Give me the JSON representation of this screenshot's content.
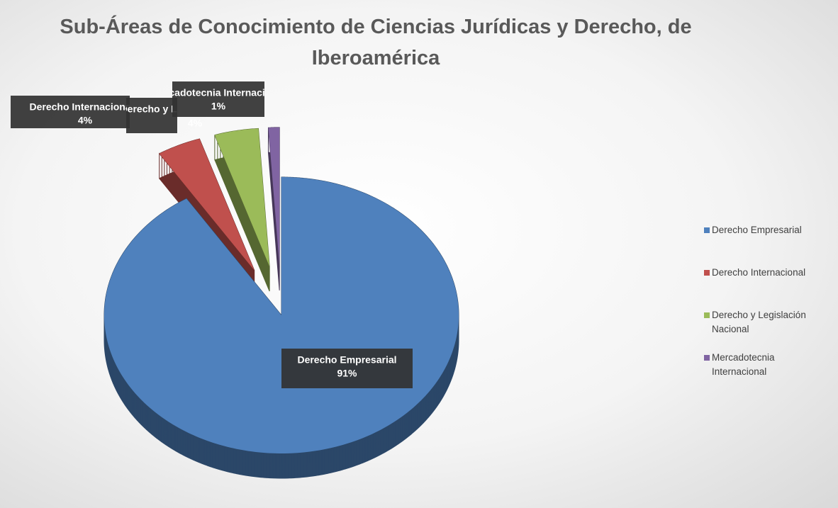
{
  "chart_data": {
    "type": "pie",
    "title": "Sub-Áreas de Conocimiento de Ciencias Jurídicas y Derecho, de Iberoamérica",
    "categories": [
      "Derecho Empresarial",
      "Derecho Internacional",
      "Derecho y Legislación Nacional",
      "Mercadotecnia Internacional"
    ],
    "values": [
      91,
      4,
      4,
      1
    ],
    "value_labels": [
      "91%",
      "4%",
      "4%",
      "1%"
    ],
    "colors": [
      "#4f81bd",
      "#c0504d",
      "#9bbb59",
      "#8064a2"
    ],
    "legend": "right"
  }
}
